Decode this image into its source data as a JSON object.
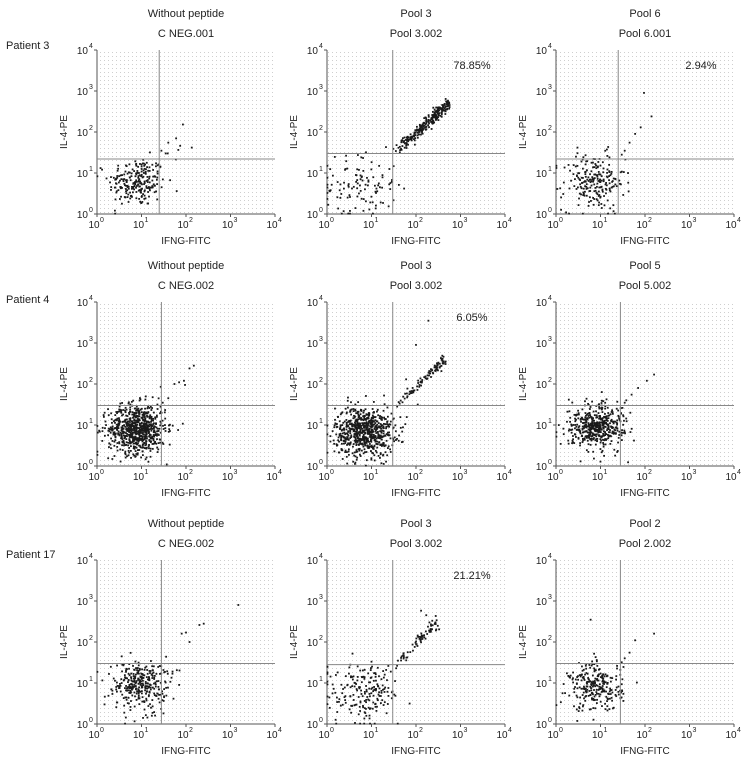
{
  "colors": {
    "dot": "#1a1a1a",
    "axis": "#555555",
    "gate": "#888888",
    "grid_dot": "#cfcfcf",
    "text": "#222222"
  },
  "chart_data": [
    {
      "type": "scatter",
      "row": "Patient 3",
      "header": "Without peptide",
      "title": "C NEG.001",
      "xlabel": "IFNG-FITC",
      "ylabel": "IL-4-PE",
      "log_scale": true,
      "xlim": [
        1,
        10000
      ],
      "ylim": [
        1,
        10000
      ],
      "x_ticks": [
        "10",
        "10",
        "10",
        "10",
        "10"
      ],
      "x_tick_exps": [
        "0",
        "1",
        "2",
        "3",
        "4"
      ],
      "y_ticks": [
        "10",
        "10",
        "10",
        "10",
        "10"
      ],
      "y_tick_exps": [
        "0",
        "1",
        "2",
        "3",
        "4"
      ],
      "gate": {
        "x": 25,
        "y": 22
      },
      "annotation": "",
      "clusters": [
        {
          "cx": 8,
          "cy": 6,
          "sx": 0.32,
          "sy": 0.3,
          "n": 230
        },
        {
          "cx": 60,
          "cy": 40,
          "sx": 0.25,
          "sy": 0.25,
          "n": 6
        }
      ],
      "points": [
        [
          60,
          70
        ],
        [
          40,
          55
        ],
        [
          35,
          30
        ],
        [
          28,
          35
        ]
      ]
    },
    {
      "type": "scatter",
      "row": "Patient 3",
      "header": "Pool 3",
      "title": "Pool 3.002",
      "xlabel": "IFNG-FITC",
      "ylabel": "IL-4-PE",
      "log_scale": true,
      "xlim": [
        1,
        10000
      ],
      "ylim": [
        1,
        10000
      ],
      "x_ticks": [
        "10",
        "10",
        "10",
        "10",
        "10"
      ],
      "x_tick_exps": [
        "0",
        "1",
        "2",
        "3",
        "4"
      ],
      "y_ticks": [
        "10",
        "10",
        "10",
        "10",
        "10"
      ],
      "y_tick_exps": [
        "0",
        "1",
        "2",
        "3",
        "4"
      ],
      "gate": {
        "x": 30,
        "y": 30
      },
      "annotation": "78.85%",
      "clusters": [
        {
          "cx": 6,
          "cy": 5,
          "sx": 0.4,
          "sy": 0.4,
          "n": 110
        }
      ],
      "diagonal": {
        "x0": 30,
        "x1": 550,
        "n": 260,
        "slope": 1.0,
        "scatter": 0.07,
        "y_at_x0": 28
      },
      "points": []
    },
    {
      "type": "scatter",
      "row": "Patient 3",
      "header": "Pool 6",
      "title": "Pool 6.001",
      "xlabel": "IFNG-FITC",
      "ylabel": "IL-4-PE",
      "log_scale": true,
      "xlim": [
        1,
        10000
      ],
      "ylim": [
        1,
        10000
      ],
      "x_ticks": [
        "10",
        "10",
        "10",
        "10",
        "10"
      ],
      "x_tick_exps": [
        "0",
        "1",
        "2",
        "3",
        "4"
      ],
      "y_ticks": [
        "10",
        "10",
        "10",
        "10",
        "10"
      ],
      "y_tick_exps": [
        "0",
        "1",
        "2",
        "3",
        "4"
      ],
      "gate": {
        "x": 25,
        "y": 22
      },
      "annotation": "2.94%",
      "clusters": [
        {
          "cx": 7,
          "cy": 6,
          "sx": 0.35,
          "sy": 0.35,
          "n": 220
        }
      ],
      "points": [
        [
          95,
          900
        ],
        [
          140,
          240
        ],
        [
          80,
          130
        ],
        [
          60,
          90
        ],
        [
          45,
          55
        ],
        [
          35,
          35
        ],
        [
          30,
          28
        ]
      ]
    },
    {
      "type": "scatter",
      "row": "Patient 4",
      "header": "Without peptide",
      "title": "C NEG.002",
      "xlabel": "IFNG-FITC",
      "ylabel": "IL-4-PE",
      "log_scale": true,
      "xlim": [
        1,
        10000
      ],
      "ylim": [
        1,
        10000
      ],
      "x_ticks": [
        "10",
        "10",
        "10",
        "10",
        "10"
      ],
      "x_tick_exps": [
        "0",
        "1",
        "2",
        "3",
        "4"
      ],
      "y_ticks": [
        "10",
        "10",
        "10",
        "10",
        "10"
      ],
      "y_tick_exps": [
        "0",
        "1",
        "2",
        "3",
        "4"
      ],
      "gate": {
        "x": 28,
        "y": 30
      },
      "annotation": "",
      "clusters": [
        {
          "cx": 8,
          "cy": 8,
          "sx": 0.32,
          "sy": 0.3,
          "n": 750
        }
      ],
      "points": [
        [
          150,
          280
        ],
        [
          120,
          240
        ],
        [
          90,
          120
        ],
        [
          70,
          110
        ],
        [
          55,
          100
        ],
        [
          40,
          45
        ],
        [
          30,
          35
        ],
        [
          95,
          95
        ]
      ]
    },
    {
      "type": "scatter",
      "row": "Patient 4",
      "header": "Pool 3",
      "title": "Pool 3.002",
      "xlabel": "IFNG-FITC",
      "ylabel": "IL-4-PE",
      "log_scale": true,
      "xlim": [
        1,
        10000
      ],
      "ylim": [
        1,
        10000
      ],
      "x_ticks": [
        "10",
        "10",
        "10",
        "10",
        "10"
      ],
      "x_tick_exps": [
        "0",
        "1",
        "2",
        "3",
        "4"
      ],
      "y_ticks": [
        "10",
        "10",
        "10",
        "10",
        "10"
      ],
      "y_tick_exps": [
        "0",
        "1",
        "2",
        "3",
        "4"
      ],
      "gate": {
        "x": 30,
        "y": 30
      },
      "annotation": "6.05%",
      "clusters": [
        {
          "cx": 7,
          "cy": 7,
          "sx": 0.33,
          "sy": 0.3,
          "n": 700
        }
      ],
      "diagonal": {
        "x0": 30,
        "x1": 450,
        "n": 90,
        "slope": 1.0,
        "scatter": 0.06,
        "y_at_x0": 25
      },
      "points": [
        [
          190,
          3500
        ],
        [
          100,
          900
        ],
        [
          60,
          130
        ]
      ]
    },
    {
      "type": "scatter",
      "row": "Patient 4",
      "header": "Pool 5",
      "title": "Pool 5.002",
      "xlabel": "IFNG-FITC",
      "ylabel": "IL-4-PE",
      "log_scale": true,
      "xlim": [
        1,
        10000
      ],
      "ylim": [
        1,
        10000
      ],
      "x_ticks": [
        "10",
        "10",
        "10",
        "10",
        "10"
      ],
      "x_tick_exps": [
        "0",
        "1",
        "2",
        "3",
        "4"
      ],
      "y_ticks": [
        "10",
        "10",
        "10",
        "10",
        "10"
      ],
      "y_tick_exps": [
        "0",
        "1",
        "2",
        "3",
        "4"
      ],
      "gate": {
        "x": 28,
        "y": 30
      },
      "annotation": "",
      "clusters": [
        {
          "cx": 8,
          "cy": 9,
          "sx": 0.3,
          "sy": 0.28,
          "n": 480
        }
      ],
      "points": [
        [
          160,
          170
        ],
        [
          110,
          120
        ],
        [
          70,
          80
        ],
        [
          50,
          55
        ],
        [
          38,
          40
        ],
        [
          35,
          35
        ]
      ]
    },
    {
      "type": "scatter",
      "row": "Patient 17",
      "header": "Without peptide",
      "title": "C NEG.002",
      "xlabel": "IFNG-FITC",
      "ylabel": "IL-4-PE",
      "log_scale": true,
      "xlim": [
        1,
        10000
      ],
      "ylim": [
        1,
        10000
      ],
      "x_ticks": [
        "10",
        "10",
        "10",
        "10",
        "10"
      ],
      "x_tick_exps": [
        "0",
        "1",
        "2",
        "3",
        "4"
      ],
      "y_ticks": [
        "10",
        "10",
        "10",
        "10",
        "10"
      ],
      "y_tick_exps": [
        "0",
        "1",
        "2",
        "3",
        "4"
      ],
      "gate": {
        "x": 28,
        "y": 30
      },
      "annotation": "",
      "clusters": [
        {
          "cx": 9,
          "cy": 9,
          "sx": 0.3,
          "sy": 0.3,
          "n": 330
        }
      ],
      "points": [
        [
          1500,
          800
        ],
        [
          250,
          280
        ],
        [
          200,
          260
        ],
        [
          100,
          170
        ],
        [
          80,
          160
        ],
        [
          120,
          100
        ]
      ]
    },
    {
      "type": "scatter",
      "row": "Patient 17",
      "header": "Pool 3",
      "title": "Pool 3.002",
      "xlabel": "IFNG-FITC",
      "ylabel": "IL-4-PE",
      "log_scale": true,
      "xlim": [
        1,
        10000
      ],
      "ylim": [
        1,
        10000
      ],
      "x_ticks": [
        "10",
        "10",
        "10",
        "10",
        "10"
      ],
      "x_tick_exps": [
        "0",
        "1",
        "2",
        "3",
        "4"
      ],
      "y_ticks": [
        "10",
        "10",
        "10",
        "10",
        "10"
      ],
      "y_tick_exps": [
        "0",
        "1",
        "2",
        "3",
        "4"
      ],
      "gate": {
        "x": 30,
        "y": 28
      },
      "annotation": "21.21%",
      "clusters": [
        {
          "cx": 7,
          "cy": 6,
          "sx": 0.38,
          "sy": 0.36,
          "n": 200
        }
      ],
      "diagonal": {
        "x0": 30,
        "x1": 320,
        "n": 70,
        "slope": 1.1,
        "scatter": 0.07,
        "y_at_x0": 25
      },
      "points": [
        [
          130,
          580
        ],
        [
          170,
          450
        ],
        [
          200,
          300
        ]
      ]
    },
    {
      "type": "scatter",
      "row": "Patient 17",
      "header": "Pool 2",
      "title": "Pool 2.002",
      "xlabel": "IFNG-FITC",
      "ylabel": "IL-4-PE",
      "log_scale": true,
      "xlim": [
        1,
        10000
      ],
      "ylim": [
        1,
        10000
      ],
      "x_ticks": [
        "10",
        "10",
        "10",
        "10",
        "10"
      ],
      "x_tick_exps": [
        "0",
        "1",
        "2",
        "3",
        "4"
      ],
      "y_ticks": [
        "10",
        "10",
        "10",
        "10",
        "10"
      ],
      "y_tick_exps": [
        "0",
        "1",
        "2",
        "3",
        "4"
      ],
      "gate": {
        "x": 28,
        "y": 30
      },
      "annotation": "",
      "clusters": [
        {
          "cx": 8,
          "cy": 8,
          "sx": 0.3,
          "sy": 0.3,
          "n": 260
        }
      ],
      "points": [
        [
          6,
          350
        ],
        [
          60,
          110
        ],
        [
          45,
          55
        ],
        [
          35,
          40
        ],
        [
          160,
          160
        ],
        [
          30,
          32
        ]
      ]
    }
  ],
  "rows": [
    "Patient 3",
    "Patient 4",
    "Patient 17"
  ]
}
